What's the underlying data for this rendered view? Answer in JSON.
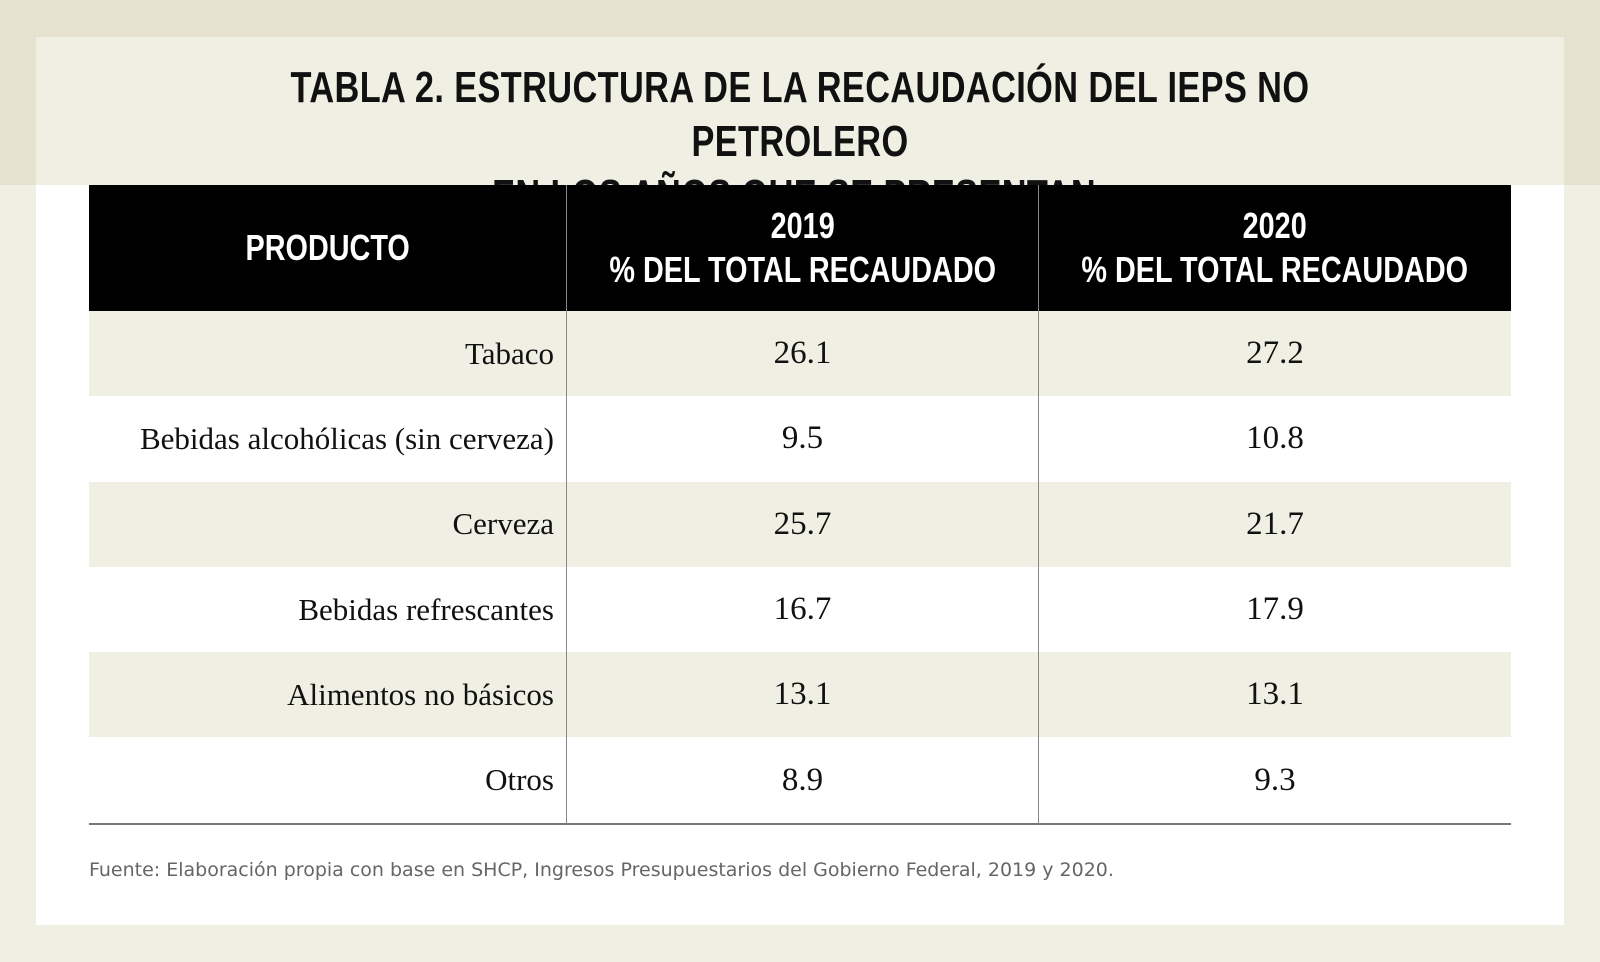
{
  "title": [
    "TABLA 2. ESTRUCTURA DE LA RECAUDACIÓN DEL IEPS NO PETROLERO",
    "EN LOS AÑOS QUE SE PRESENTAN:"
  ],
  "table": {
    "header": {
      "product": "PRODUCTO",
      "years": [
        {
          "year": "2019",
          "label": "% DEL TOTAL RECAUDADO"
        },
        {
          "year": "2020",
          "label": "% DEL TOTAL RECAUDADO"
        }
      ]
    },
    "rows": [
      [
        "Tabaco",
        26.1,
        27.2
      ],
      [
        "Bebidas alcohólicas (sin cerveza)",
        9.5,
        10.8
      ],
      [
        "Cerveza",
        25.7,
        21.7
      ],
      [
        "Bebidas refrescantes",
        16.7,
        17.9
      ],
      [
        "Alimentos no básicos",
        13.1,
        13.1
      ],
      [
        "Otros",
        8.9,
        9.3
      ]
    ]
  },
  "source": "Fuente: Elaboración propia con base en SHCP, Ingresos Presupuestarios del Gobierno Federal, 2019 y 2020."
}
